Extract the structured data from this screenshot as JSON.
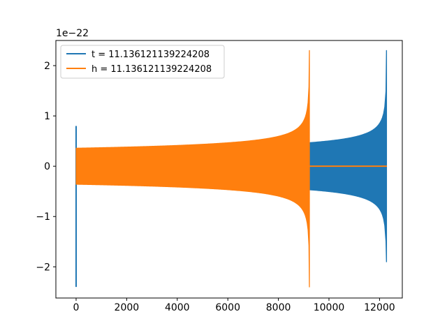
{
  "chart_data": {
    "type": "line",
    "title": "",
    "xlabel": "",
    "ylabel": "",
    "y_offset_label": "1e−22",
    "xlim": [
      -800,
      12900
    ],
    "ylim": [
      -2.62,
      2.5
    ],
    "x_ticks": [
      0,
      2000,
      4000,
      6000,
      8000,
      10000,
      12000
    ],
    "x_tick_labels": [
      "0",
      "2000",
      "4000",
      "6000",
      "8000",
      "10000",
      "12000"
    ],
    "y_ticks": [
      -2,
      -1,
      0,
      1,
      2
    ],
    "y_tick_labels": [
      "−2",
      "−1",
      "0",
      "1",
      "2"
    ],
    "grid": false,
    "legend_position": "top-left",
    "series": [
      {
        "name": "t = 11.136121139224208",
        "color": "#1f77b4",
        "envelope": {
          "start_spike": {
            "x": 0,
            "max": 0.8,
            "min": -2.4
          },
          "start_amplitude": 0.35,
          "plateau_end_x": 9230,
          "plateau_end_amplitude": 0.47,
          "merger_x": 12280,
          "merger_max": 2.3,
          "merger_min": -1.9,
          "end_x": 12290
        }
      },
      {
        "name": "h = 11.136121139224208",
        "color": "#ff7f0e",
        "envelope": {
          "start_x": 0,
          "start_amplitude": 0.36,
          "merger_x": 9230,
          "merger_max": 2.3,
          "merger_min": -2.4,
          "tail_value": 0,
          "end_x": 12290
        }
      }
    ]
  }
}
